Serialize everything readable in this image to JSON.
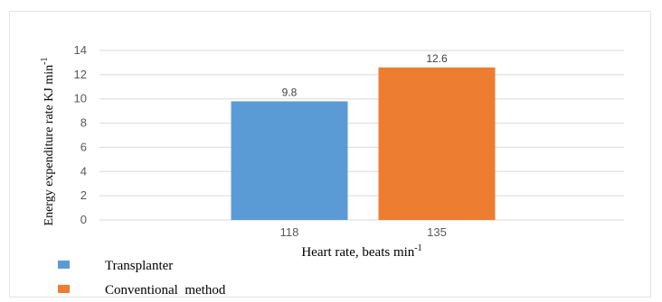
{
  "chart_data": {
    "type": "bar",
    "categories": [
      "118",
      "135"
    ],
    "values": [
      9.8,
      12.6
    ],
    "value_labels": [
      "9.8",
      "12.6"
    ],
    "colors": [
      "#5b9bd5",
      "#ed7d31"
    ],
    "legend": [
      "Transplanter",
      "Conventional  method"
    ],
    "legend_position": "bottom-left",
    "xlabel": {
      "text": "Heart rate, beats min",
      "sup": "-1"
    },
    "ylabel": {
      "text": "Energy expenditure rate KJ min",
      "sup": "-1"
    },
    "yticks": [
      "0",
      "2",
      "4",
      "6",
      "8",
      "10",
      "12",
      "14"
    ],
    "ylim": [
      0,
      14
    ],
    "grid": true
  }
}
